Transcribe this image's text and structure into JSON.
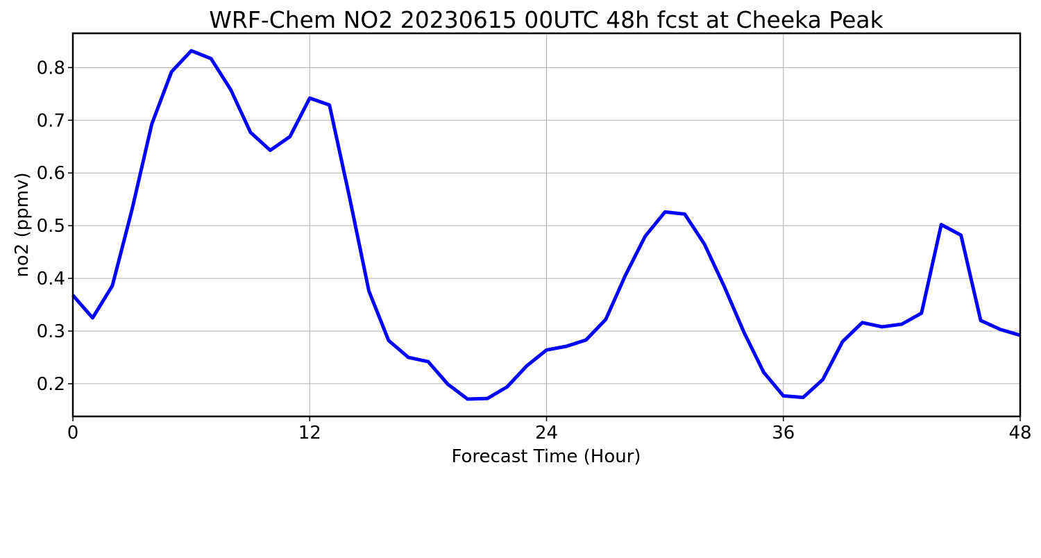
{
  "chart_data": {
    "type": "line",
    "title": "WRF-Chem NO2  20230615 00UTC 48h fcst at Cheeka Peak",
    "xlabel": "Forecast Time (Hour)",
    "ylabel": "no2  (ppmv)",
    "xlim": [
      0,
      48
    ],
    "ylim": [
      0.138,
      0.865
    ],
    "xticks": [
      0,
      12,
      24,
      36,
      48
    ],
    "yticks": [
      0.2,
      0.3,
      0.4,
      0.5,
      0.6,
      0.7,
      0.8
    ],
    "grid": true,
    "x": [
      0,
      1,
      2,
      3,
      4,
      5,
      6,
      7,
      8,
      9,
      10,
      11,
      12,
      13,
      14,
      15,
      16,
      17,
      18,
      19,
      20,
      21,
      22,
      23,
      24,
      25,
      26,
      27,
      28,
      29,
      30,
      31,
      32,
      33,
      34,
      35,
      36,
      37,
      38,
      39,
      40,
      41,
      42,
      43,
      44,
      45,
      46,
      47,
      48
    ],
    "series": [
      {
        "color": "#0000ff",
        "values": [
          0.368,
          0.325,
          0.386,
          0.531,
          0.693,
          0.792,
          0.832,
          0.817,
          0.758,
          0.677,
          0.643,
          0.669,
          0.742,
          0.729,
          0.557,
          0.376,
          0.282,
          0.25,
          0.242,
          0.199,
          0.171,
          0.172,
          0.194,
          0.234,
          0.264,
          0.271,
          0.283,
          0.322,
          0.406,
          0.48,
          0.526,
          0.522,
          0.465,
          0.385,
          0.298,
          0.222,
          0.177,
          0.174,
          0.208,
          0.28,
          0.316,
          0.308,
          0.313,
          0.334,
          0.502,
          0.482,
          0.32,
          0.303,
          0.292
        ]
      }
    ]
  }
}
